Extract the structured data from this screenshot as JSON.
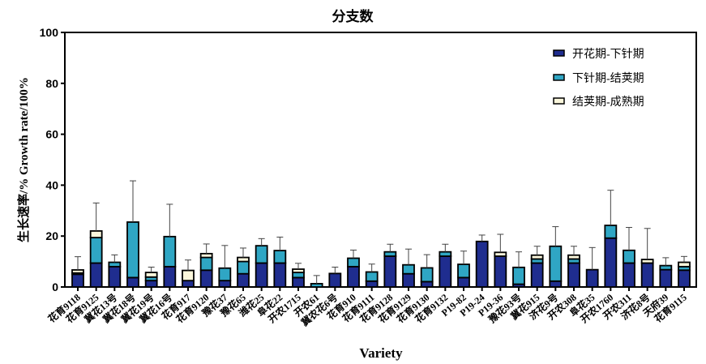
{
  "chart_data": {
    "type": "bar",
    "stacked": true,
    "title": "分支数",
    "xlabel": "Variety",
    "ylabel": "生长速率/% Growth rate/100%",
    "ylim": [
      0,
      100
    ],
    "yticks": [
      0,
      20,
      40,
      60,
      80,
      100
    ],
    "legend_position": "top-right",
    "categories": [
      "花育9118",
      "花育9125",
      "冀花13号",
      "冀花18号",
      "冀花19号",
      "冀花16号",
      "花育917",
      "花育9120",
      "豫花37",
      "豫花65",
      "潍花25",
      "阜花22",
      "开农1715",
      "开农61",
      "冀农花6号",
      "花育910",
      "花育9111",
      "花育9128",
      "花育9129",
      "花育9130",
      "花育9132",
      "P19-82",
      "P19-24",
      "P19-36",
      "豫花93号",
      "冀花915",
      "济花9号",
      "开农308",
      "阜花35",
      "开农1760",
      "开农311",
      "济花8号",
      "天府39",
      "花育9115"
    ],
    "series": [
      {
        "name": "开花期-下针期",
        "color": "#1f2d8f",
        "values": [
          5,
          9.4,
          8,
          3.7,
          2.5,
          8,
          2.5,
          6.6,
          2.5,
          5.2,
          9.4,
          9.4,
          3.7,
          0,
          5.3,
          8,
          2.3,
          12.1,
          5.2,
          2.1,
          12.1,
          3.7,
          17.9,
          12.1,
          1.1,
          9.4,
          2.3,
          9.4,
          6.8,
          19.2,
          9.4,
          9.4,
          6.8,
          6.6
        ]
      },
      {
        "name": "下针期-结荚期",
        "color": "#2fa6c4",
        "values": [
          0.5,
          10,
          1.7,
          21.8,
          1.4,
          11.8,
          0,
          5,
          4.9,
          4.8,
          6.8,
          4.9,
          2,
          1.3,
          0,
          3.3,
          3.6,
          1.7,
          3.5,
          5.4,
          1.7,
          5.2,
          0,
          0,
          6.6,
          1.6,
          13.7,
          1.6,
          0,
          5,
          5,
          0,
          1.6,
          1.4
        ]
      },
      {
        "name": "结荚期-成熟期",
        "color": "#fbf7dc",
        "values": [
          1.2,
          2.6,
          0,
          0,
          1.8,
          0,
          4,
          1.5,
          0,
          1.6,
          0,
          0,
          1.3,
          0,
          0,
          0,
          0,
          0,
          0,
          0,
          0,
          0,
          0,
          1.5,
          0,
          1.5,
          0,
          1.5,
          0,
          0,
          0,
          1.4,
          0,
          1.7
        ]
      }
    ],
    "error_top": [
      11.9,
      33,
      12.6,
      41.7,
      7.8,
      32.5,
      10.6,
      16.9,
      16.3,
      15.3,
      19,
      19.6,
      9.3,
      4.5,
      7.8,
      14.5,
      9,
      16.8,
      14.9,
      12.7,
      16.8,
      14.1,
      20.4,
      20.7,
      13.8,
      16,
      23.7,
      16,
      15.5,
      38,
      23.4,
      23,
      11.5,
      12
    ]
  }
}
